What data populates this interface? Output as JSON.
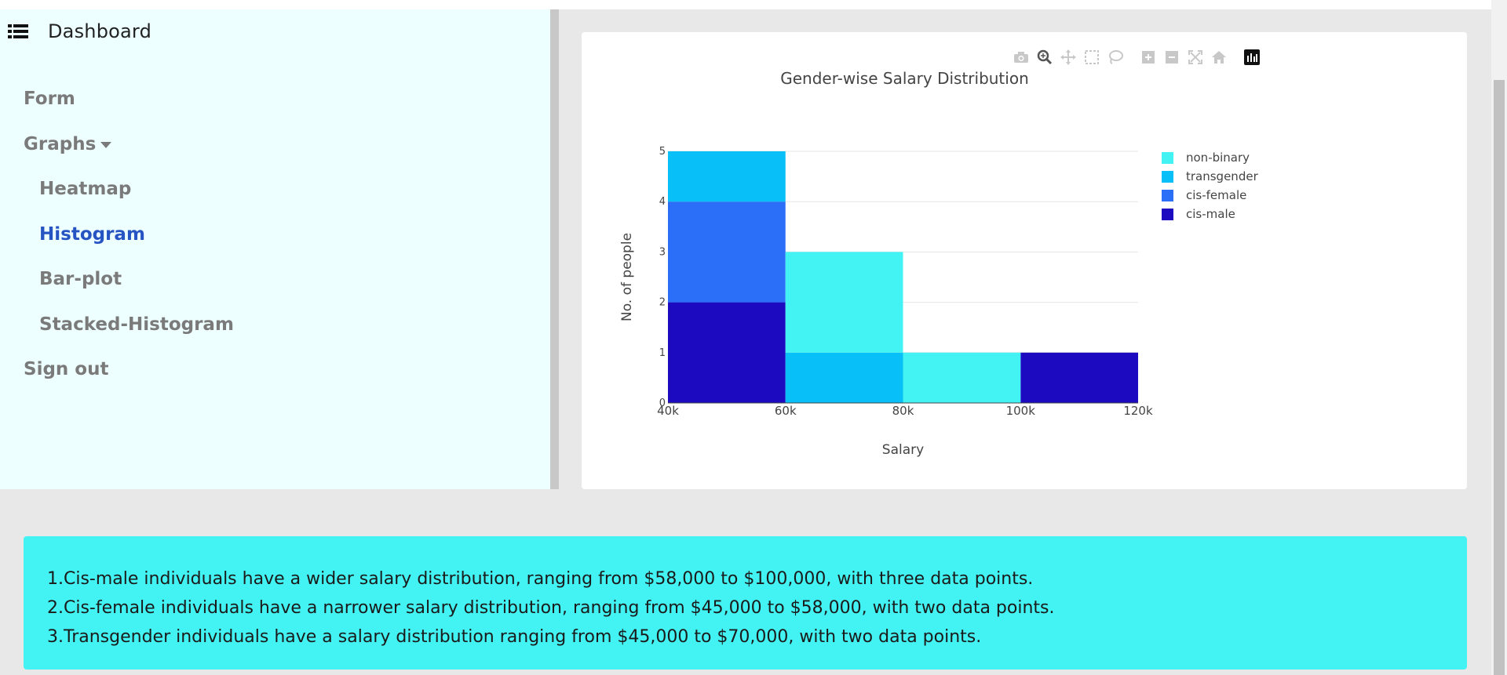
{
  "sidebar": {
    "brand": {
      "icon": "list-icon",
      "title": "Dashboard"
    },
    "items": [
      {
        "label": "Form"
      },
      {
        "label": "Graphs",
        "icon": "caret-down-icon"
      },
      {
        "label": "Heatmap"
      },
      {
        "label": "Histogram",
        "active": true
      },
      {
        "label": "Bar-plot"
      },
      {
        "label": "Stacked-Histogram"
      },
      {
        "label": "Sign out"
      }
    ]
  },
  "modebar": [
    "camera-icon",
    "zoom-icon",
    "pan-icon",
    "box-select-icon",
    "lasso-select-icon",
    "zoom-in-icon",
    "zoom-out-icon",
    "autoscale-icon",
    "reset-axes-icon",
    "plotly-logo-icon"
  ],
  "chart_data": {
    "type": "bar",
    "title": "Gender-wise Salary Distribution",
    "xlabel": "Salary",
    "ylabel": "No. of people",
    "x_bins": [
      [
        40000,
        60000
      ],
      [
        60000,
        80000
      ],
      [
        80000,
        100000
      ],
      [
        100000,
        120000
      ]
    ],
    "xticks": [
      "40k",
      "60k",
      "80k",
      "100k",
      "120k"
    ],
    "yticks": [
      "0",
      "1",
      "2",
      "3",
      "4",
      "5"
    ],
    "ylim": [
      0,
      5
    ],
    "stacked": true,
    "series": [
      {
        "name": "cis-male",
        "color": "#1c0ac1",
        "values": [
          2,
          0,
          0,
          1
        ]
      },
      {
        "name": "cis-female",
        "color": "#2b6ef7",
        "values": [
          2,
          0,
          0,
          0
        ]
      },
      {
        "name": "transgender",
        "color": "#08bff7",
        "values": [
          1,
          1,
          0,
          0
        ]
      },
      {
        "name": "non-binary",
        "color": "#43f3f3",
        "values": [
          0,
          2,
          1,
          0
        ]
      }
    ],
    "legend_order": [
      "non-binary",
      "transgender",
      "cis-female",
      "cis-male"
    ],
    "legend_position": "right",
    "grid": true
  },
  "insights": [
    "1.Cis-male individuals have a wider salary distribution, ranging from $58,000 to $100,000, with three data points.",
    "2.Cis-female individuals have a narrower salary distribution, ranging from $45,000 to $58,000, with two data points.",
    "3.Transgender individuals have a salary distribution ranging from $45,000 to $70,000, with two data points."
  ]
}
